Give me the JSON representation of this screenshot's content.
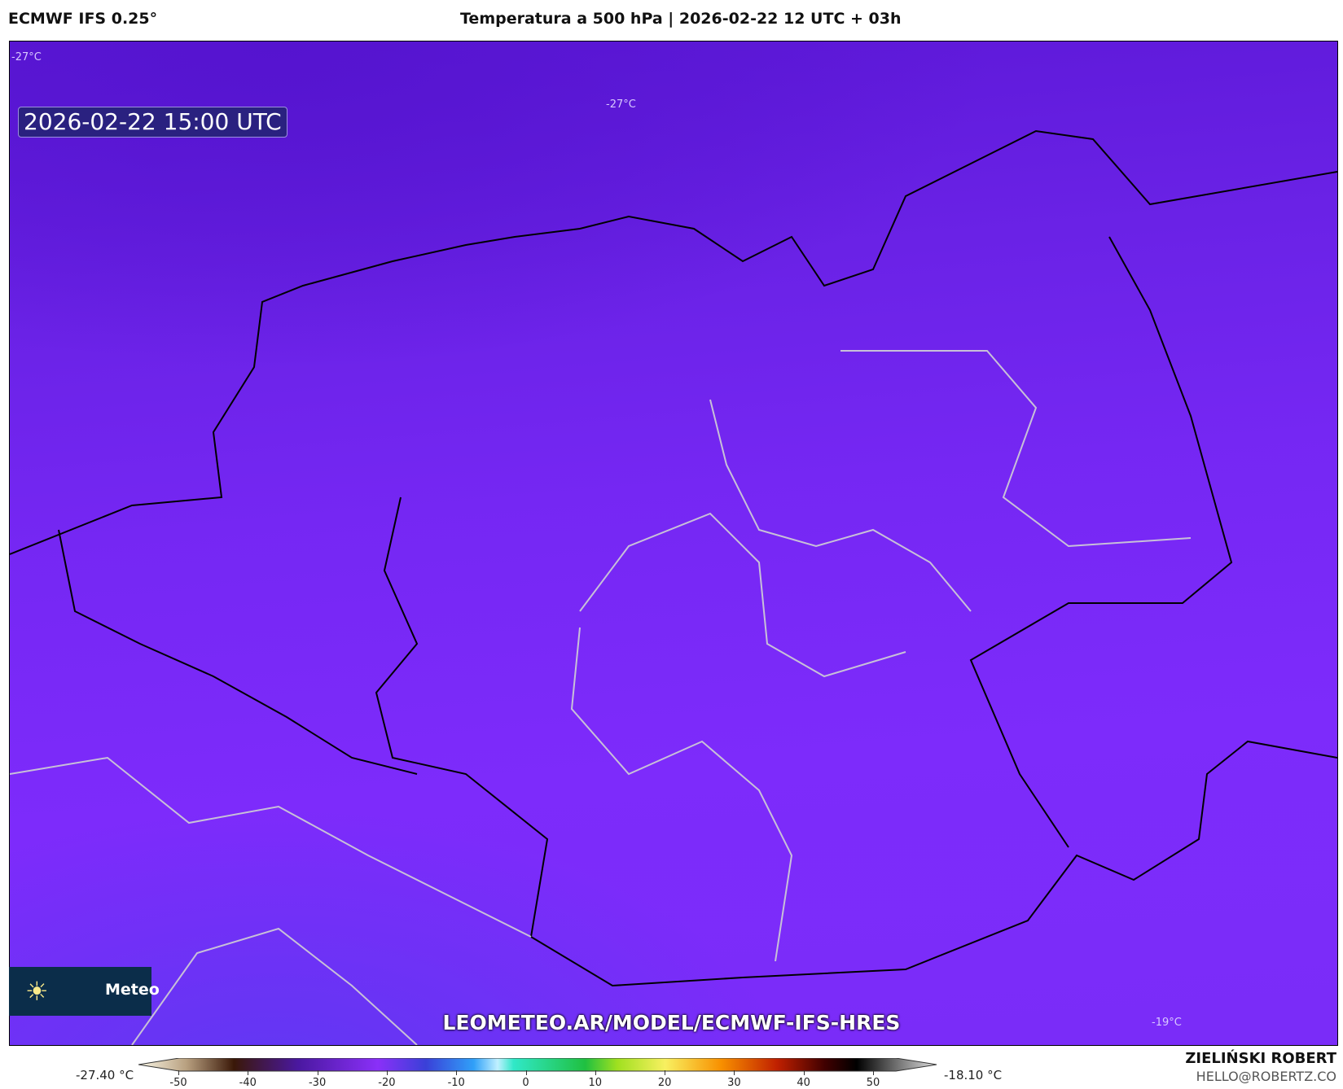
{
  "header": {
    "model": "ECMWF IFS 0.25°",
    "title": "Temperatura a 500 hPa | 2026-02-22 12 UTC + 03h"
  },
  "map": {
    "valid_time": "2026-02-22 15:00 UTC",
    "contour_labels": [
      "-27°C",
      "-27°C",
      "-19°C"
    ],
    "watermark": "LEOMETEO.AR/MODEL/ECMWF-IFS-HRES",
    "fill_color": "#7a2af5"
  },
  "logo": {
    "icon": "sun-icon",
    "text": "Meteo"
  },
  "colorbar": {
    "min_label": "-27.40 °C",
    "max_label": "-18.10 °C",
    "ticks": [
      "-50",
      "-40",
      "-30",
      "-20",
      "-10",
      "0",
      "10",
      "20",
      "30",
      "40",
      "50"
    ],
    "unit": "°C"
  },
  "footer": {
    "author": "ZIELIŃSKI ROBERT",
    "email": "HELLO@ROBERTZ.CO"
  }
}
